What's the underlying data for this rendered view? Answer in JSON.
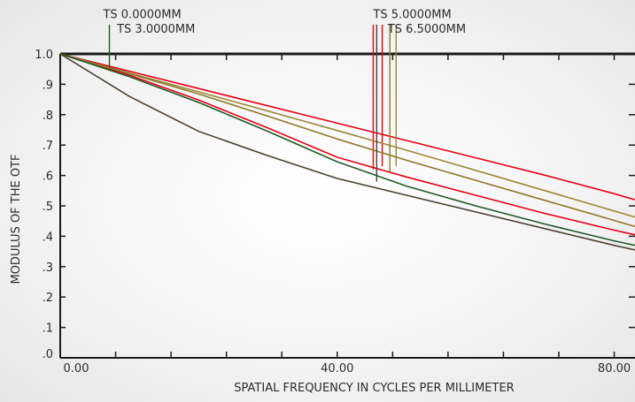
{
  "chart_data": {
    "type": "line",
    "title": "",
    "xlabel": "SPATIAL FREQUENCY IN CYCLES PER MILLIMETER",
    "ylabel": "MODULUS OF THE OTF",
    "xlim": [
      0,
      83
    ],
    "ylim": [
      0,
      1
    ],
    "grid": false,
    "x_tick_labels": [
      {
        "value": 0,
        "text": "0.00"
      },
      {
        "value": 40,
        "text": "40.00"
      },
      {
        "value": 80,
        "text": "80.00"
      }
    ],
    "x_minor_ticks": [
      8,
      16,
      24,
      32,
      48,
      56,
      64,
      72
    ],
    "y_tick_labels": [
      {
        "value": 0.0,
        "text": ".0"
      },
      {
        "value": 0.1,
        "text": ".1"
      },
      {
        "value": 0.2,
        "text": ".2"
      },
      {
        "value": 0.3,
        "text": ".3"
      },
      {
        "value": 0.4,
        "text": ".4"
      },
      {
        "value": 0.5,
        "text": ".5"
      },
      {
        "value": 0.6,
        "text": ".6"
      },
      {
        "value": 0.7,
        "text": ".7"
      },
      {
        "value": 0.8,
        "text": ".8"
      },
      {
        "value": 0.9,
        "text": ".9"
      },
      {
        "value": 1.0,
        "text": "1.0"
      }
    ],
    "field_labels": [
      {
        "text": "TS 0.0000MM",
        "x": 6.2,
        "y": 1.118
      },
      {
        "text": "TS 3.0000MM",
        "x": 8.2,
        "y": 1.07
      },
      {
        "text": "TS 5.0000MM",
        "x": 45.2,
        "y": 1.118
      },
      {
        "text": "TS 6.5000MM",
        "x": 47.3,
        "y": 1.07
      }
    ],
    "series": [
      {
        "color": "#e2001a",
        "x": [
          0,
          10,
          20,
          30,
          40,
          50,
          60,
          70,
          80,
          83
        ],
        "y": [
          1.0,
          0.943,
          0.886,
          0.829,
          0.772,
          0.715,
          0.658,
          0.601,
          0.54,
          0.52
        ],
        "marker": {
          "x": 45.2,
          "y": 0.62
        }
      },
      {
        "color": "#e2001a",
        "x": [
          0,
          10,
          20,
          30,
          40,
          50,
          60,
          70,
          80,
          83
        ],
        "y": [
          1.0,
          0.93,
          0.848,
          0.756,
          0.66,
          0.595,
          0.535,
          0.475,
          0.42,
          0.405
        ],
        "marker": {
          "x": 46.5,
          "y": 0.63
        }
      },
      {
        "color": "#9a8a3a",
        "x": [
          0,
          10,
          20,
          30,
          40,
          50,
          60,
          70,
          80,
          83
        ],
        "y": [
          1.0,
          0.937,
          0.875,
          0.812,
          0.748,
          0.683,
          0.617,
          0.55,
          0.483,
          0.463
        ],
        "marker": {
          "x": 48.5,
          "y": 0.63
        }
      },
      {
        "color": "#8a7a2a",
        "x": [
          0,
          10,
          20,
          30,
          40,
          50,
          60,
          70,
          80,
          83
        ],
        "y": [
          1.0,
          0.935,
          0.868,
          0.795,
          0.72,
          0.65,
          0.584,
          0.518,
          0.452,
          0.432
        ],
        "marker": {
          "x": 47.6,
          "y": 0.61
        }
      },
      {
        "color": "#1f5a2a",
        "x": [
          0,
          10,
          20,
          30,
          40,
          50,
          60,
          70,
          80,
          83
        ],
        "y": [
          1.0,
          0.925,
          0.84,
          0.745,
          0.645,
          0.565,
          0.5,
          0.44,
          0.385,
          0.37
        ],
        "marker": {
          "x": 7.1,
          "y": 0.955
        }
      },
      {
        "color": "#4a4030",
        "x": [
          0,
          10,
          20,
          30,
          40,
          50,
          60,
          70,
          80,
          83
        ],
        "y": [
          1.0,
          0.86,
          0.745,
          0.665,
          0.59,
          0.535,
          0.48,
          0.425,
          0.37,
          0.355
        ],
        "marker": {
          "x": 45.7,
          "y": 0.58
        }
      }
    ]
  }
}
